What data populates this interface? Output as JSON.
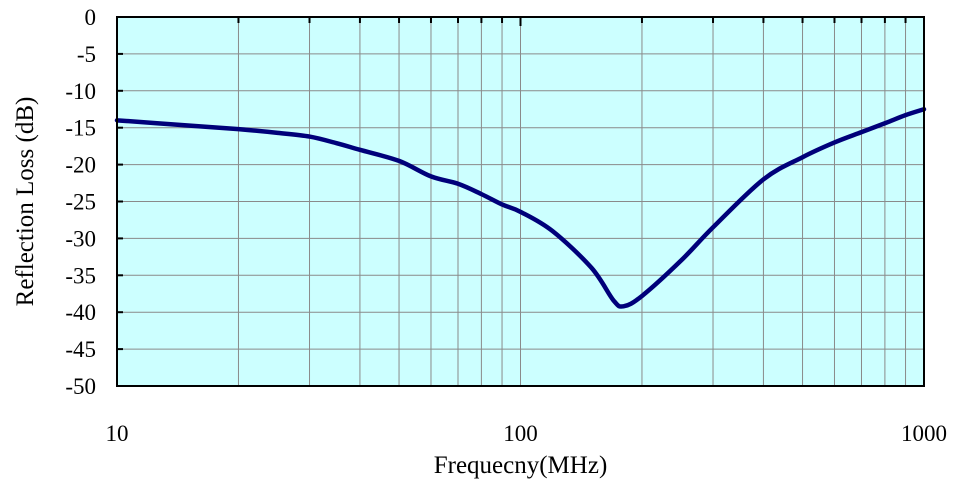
{
  "chart_data": {
    "type": "line",
    "xlabel": "Frequecny(MHz)",
    "ylabel": "Reflection Loss (dB)",
    "x_scale": "log",
    "xlim": [
      10,
      1000
    ],
    "ylim": [
      -50,
      0
    ],
    "x_ticks": [
      "10",
      "100",
      "1000"
    ],
    "y_ticks": [
      "0",
      "-5",
      "-10",
      "-15",
      "-20",
      "-25",
      "-30",
      "-35",
      "-40",
      "-45",
      "-50"
    ],
    "grid": true,
    "legend": "none",
    "plot_background": "#ccffff",
    "series": [
      {
        "color": "#00007a",
        "x": [
          10,
          15,
          20,
          25,
          30,
          35,
          40,
          50,
          60,
          70,
          80,
          90,
          100,
          120,
          150,
          170,
          180,
          200,
          250,
          300,
          400,
          500,
          600,
          700,
          800,
          900,
          1000
        ],
        "y": [
          -14.0,
          -14.7,
          -15.2,
          -15.7,
          -16.2,
          -17.1,
          -18.0,
          -19.5,
          -21.6,
          -22.6,
          -24.0,
          -25.4,
          -26.4,
          -29.0,
          -34.0,
          -38.4,
          -39.2,
          -37.8,
          -33.0,
          -28.5,
          -22.0,
          -19.0,
          -17.0,
          -15.6,
          -14.4,
          -13.3,
          -12.5
        ]
      }
    ]
  }
}
